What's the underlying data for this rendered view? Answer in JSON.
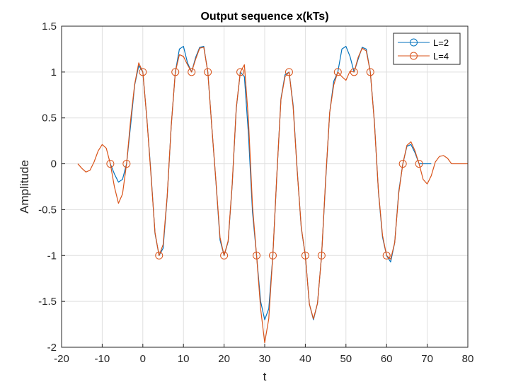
{
  "chart_data": {
    "type": "line",
    "title": "Output sequence x(kTs)",
    "xlabel": "t",
    "ylabel": "Amplitude",
    "xlim": [
      -20,
      80
    ],
    "ylim": [
      -2,
      1.5
    ],
    "xticks": [
      "-20",
      "-10",
      "0",
      "10",
      "20",
      "30",
      "40",
      "50",
      "60",
      "70",
      "80"
    ],
    "xtick_values": [
      -20,
      -10,
      0,
      10,
      20,
      30,
      40,
      50,
      60,
      70,
      80
    ],
    "yticks": [
      "-2",
      "-1.5",
      "-1",
      "-0.5",
      "0",
      "0.5",
      "1",
      "1.5"
    ],
    "ytick_values": [
      -2,
      -1.5,
      -1,
      -0.5,
      0,
      0.5,
      1,
      1.5
    ],
    "grid": true,
    "legend_position": "top-right",
    "series": [
      {
        "name": "L=2",
        "color": "#0072BD",
        "x": [
          -8,
          -7,
          -6,
          -5,
          -4,
          -3,
          -2,
          -1,
          0,
          1,
          2,
          3,
          4,
          5,
          6,
          7,
          8,
          9,
          10,
          11,
          12,
          13,
          14,
          15,
          16,
          17,
          18,
          19,
          20,
          21,
          22,
          23,
          24,
          25,
          26,
          27,
          28,
          29,
          30,
          31,
          32,
          33,
          34,
          35,
          36,
          37,
          38,
          39,
          40,
          41,
          42,
          43,
          44,
          45,
          46,
          47,
          48,
          49,
          50,
          51,
          52,
          53,
          54,
          55,
          56,
          57,
          58,
          59,
          60,
          61,
          62,
          63,
          64,
          65,
          66,
          67,
          68,
          69,
          70,
          71
        ],
        "y": [
          0,
          -0.11,
          -0.2,
          -0.17,
          0,
          0.42,
          0.86,
          1.07,
          1,
          0.49,
          -0.1,
          -0.76,
          -1,
          -0.92,
          -0.36,
          0.42,
          1,
          1.25,
          1.28,
          1.1,
          1,
          1.16,
          1.27,
          1.28,
          1,
          0.39,
          -0.2,
          -0.83,
          -1,
          -0.85,
          -0.23,
          0.6,
          1,
          0.95,
          0.32,
          -0.53,
          -1,
          -1.5,
          -1.7,
          -1.58,
          -1,
          -0.12,
          0.71,
          0.97,
          1,
          0.64,
          -0.07,
          -0.7,
          -1,
          -1.53,
          -1.7,
          -1.52,
          -1,
          -0.19,
          0.56,
          0.9,
          1,
          1.25,
          1.28,
          1.17,
          1,
          1.14,
          1.27,
          1.25,
          1,
          0.46,
          -0.31,
          -0.8,
          -1,
          -1.07,
          -0.86,
          -0.3,
          0,
          0.19,
          0.21,
          0.12,
          0,
          0,
          0,
          0
        ]
      },
      {
        "name": "L=4",
        "color": "#D95319",
        "x": [
          -16,
          -15,
          -14,
          -13,
          -12,
          -11,
          -10,
          -9,
          -8,
          -7,
          -6,
          -5,
          -4,
          -3,
          -2,
          -1,
          0,
          1,
          2,
          3,
          4,
          5,
          6,
          7,
          8,
          9,
          10,
          11,
          12,
          13,
          14,
          15,
          16,
          17,
          18,
          19,
          20,
          21,
          22,
          23,
          24,
          25,
          26,
          27,
          28,
          29,
          30,
          31,
          32,
          33,
          34,
          35,
          36,
          37,
          38,
          39,
          40,
          41,
          42,
          43,
          44,
          45,
          46,
          47,
          48,
          49,
          50,
          51,
          52,
          53,
          54,
          55,
          56,
          57,
          58,
          59,
          60,
          61,
          62,
          63,
          64,
          65,
          66,
          67,
          68,
          69,
          70,
          71,
          72,
          73,
          74,
          75,
          76,
          77,
          78,
          79,
          80
        ],
        "y": [
          0,
          -0.05,
          -0.09,
          -0.07,
          0.02,
          0.14,
          0.21,
          0.17,
          0,
          -0.25,
          -0.43,
          -0.33,
          0,
          0.48,
          0.87,
          1.1,
          1,
          0.49,
          -0.12,
          -0.75,
          -1,
          -0.88,
          -0.35,
          0.42,
          1,
          1.19,
          1.17,
          1.08,
          1,
          1.14,
          1.26,
          1.27,
          1,
          0.39,
          -0.19,
          -0.8,
          -1,
          -0.84,
          -0.22,
          0.61,
          1,
          1.08,
          0.48,
          -0.46,
          -1,
          -1.58,
          -1.95,
          -1.69,
          -1,
          -0.11,
          0.7,
          0.95,
          1,
          0.62,
          -0.08,
          -0.69,
          -1,
          -1.53,
          -1.69,
          -1.52,
          -1,
          -0.17,
          0.56,
          0.86,
          1,
          0.95,
          0.91,
          1.01,
          1,
          1.16,
          1.26,
          1.23,
          1,
          0.45,
          -0.3,
          -0.78,
          -1,
          -1.04,
          -0.86,
          -0.32,
          0,
          0.2,
          0.24,
          0.14,
          0,
          -0.17,
          -0.22,
          -0.13,
          0.02,
          0.08,
          0.09,
          0.06,
          0,
          0,
          0,
          0,
          0
        ],
        "markers_x": [
          -8,
          -4,
          0,
          4,
          8,
          12,
          16,
          20,
          24,
          28,
          32,
          36,
          40,
          44,
          48,
          52,
          56,
          60,
          64,
          68
        ],
        "markers_y": [
          0,
          0,
          1,
          -1,
          1,
          1,
          1,
          -1,
          1,
          -1,
          -1,
          1,
          -1,
          -1,
          1,
          1,
          1,
          -1,
          0,
          0
        ]
      }
    ]
  }
}
